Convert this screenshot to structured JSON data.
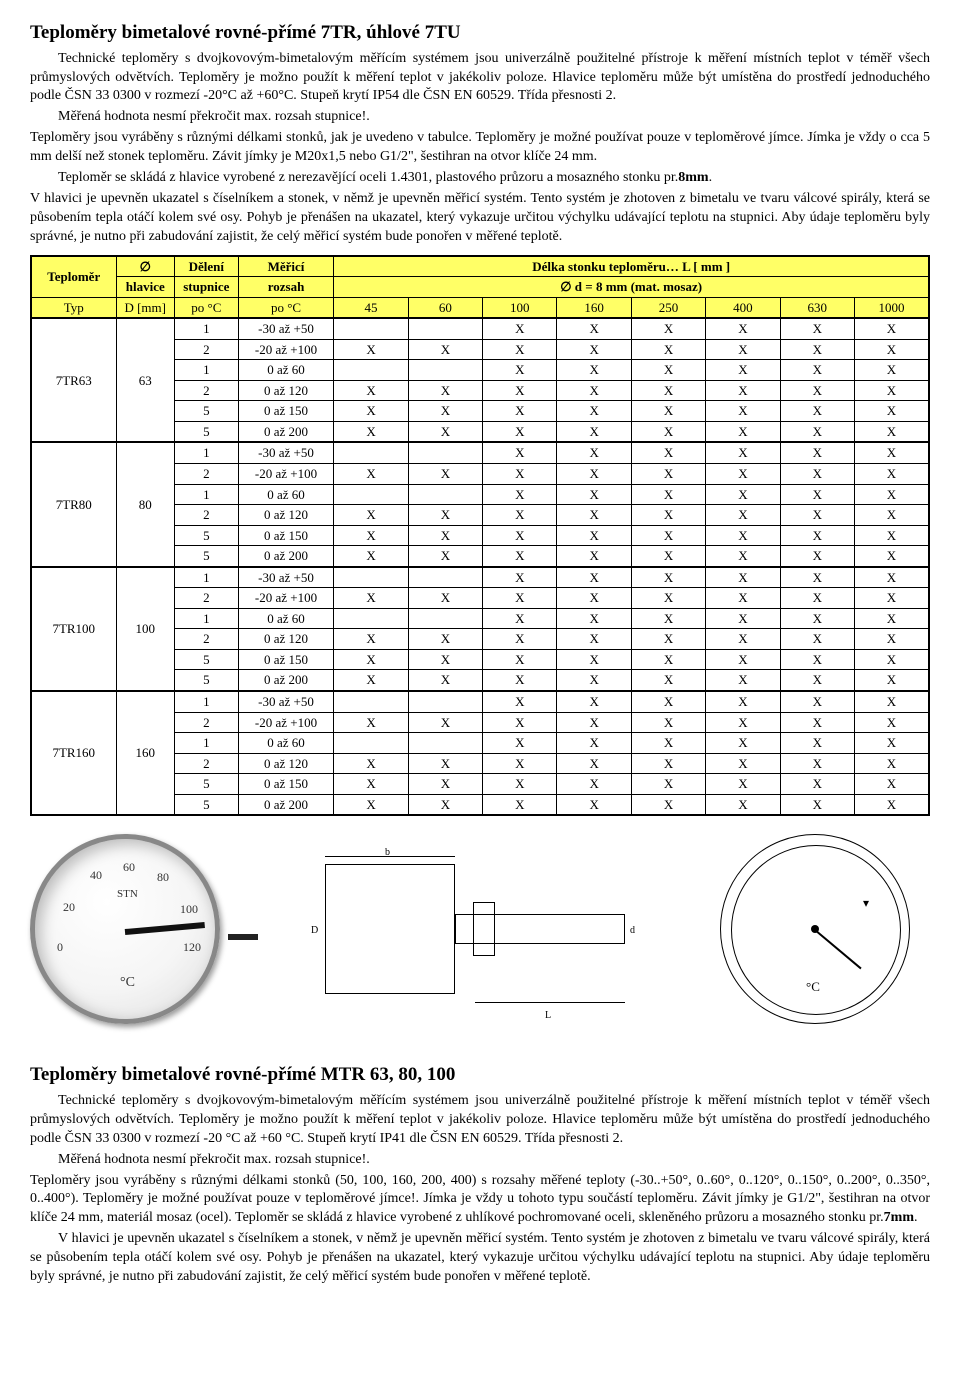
{
  "section1": {
    "title": "Teploměry bimetalové rovné-přímé 7TR, úhlové 7TU",
    "p1": "Technické teploměry s dvojkovovým-bimetalovým měřícím systémem jsou univerzálně použitelné přístroje k měření místních teplot v téměř všech průmyslových odvětvích. Teploměry je možno použít k měření teplot v jakékoliv poloze. Hlavice teploměru může být umístěna do prostředí jednoduchého podle ČSN 33 0300 v rozmezí -20°C až +60°C. Stupeň krytí IP54 dle ČSN EN 60529. Třída přesnosti 2.",
    "p2": "Měřená hodnota nesmí překročit max. rozsah stupnice!.",
    "p3": "Teploměry jsou vyráběny s různými délkami stonků, jak je uvedeno v tabulce. Teploměry je možné používat pouze v teploměrové jímce. Jímka je vždy o cca 5 mm delší než stonek teploměru. Závit jímky je M20x1,5 nebo G1/2\", šestihran na otvor klíče 24 mm.",
    "p4": "Teploměr se skládá z hlavice vyrobené z nerezavějící oceli 1.4301, plastového průzoru a mosazného stonku pr.",
    "p4b": "8mm",
    "p4c": ".",
    "p5": "V hlavici je upevněn ukazatel s číselníkem a stonek, v němž je upevněn měřicí systém. Tento systém je zhotoven z bimetalu ve tvaru válcové spirály, která se působením tepla otáčí kolem své osy. Pohyb je přenášen na ukazatel, který vykazuje určitou výchylku udávající teplotu na stupnici. Aby údaje teploměru byly správné, je nutno při zabudování zajistit, že celý měřicí systém bude ponořen v měřené teplotě."
  },
  "table": {
    "h_teplomer": "Teploměr",
    "h_dia": "∅",
    "h_hlavice": "hlavice",
    "h_deleni": "Dělení",
    "h_stupnice": "stupnice",
    "h_merici": "Měřicí",
    "h_rozsah": "rozsah",
    "h_delka": "Délka stonku teploměru… L [ mm ]",
    "h_d8": "∅ d = 8 mm (mat. mosaz)",
    "sub_typ": "Typ",
    "sub_d": "D [mm]",
    "sub_po1": "po °C",
    "sub_po2": "po °C",
    "lengths": [
      "45",
      "60",
      "100",
      "160",
      "250",
      "400",
      "630",
      "1000"
    ],
    "groups": [
      {
        "type": "7TR63",
        "d": "63"
      },
      {
        "type": "7TR80",
        "d": "80"
      },
      {
        "type": "7TR100",
        "d": "100"
      },
      {
        "type": "7TR160",
        "d": "160"
      }
    ],
    "rows": [
      {
        "div": "1",
        "range": "-30 až +50",
        "marks": [
          "",
          "",
          "X",
          "X",
          "X",
          "X",
          "X",
          "X"
        ]
      },
      {
        "div": "2",
        "range": "-20 až +100",
        "marks": [
          "X",
          "X",
          "X",
          "X",
          "X",
          "X",
          "X",
          "X"
        ]
      },
      {
        "div": "1",
        "range": "0 až 60",
        "marks": [
          "",
          "",
          "X",
          "X",
          "X",
          "X",
          "X",
          "X"
        ]
      },
      {
        "div": "2",
        "range": "0 až 120",
        "marks": [
          "X",
          "X",
          "X",
          "X",
          "X",
          "X",
          "X",
          "X"
        ]
      },
      {
        "div": "5",
        "range": "0 až 150",
        "marks": [
          "X",
          "X",
          "X",
          "X",
          "X",
          "X",
          "X",
          "X"
        ]
      },
      {
        "div": "5",
        "range": "0 až 200",
        "marks": [
          "X",
          "X",
          "X",
          "X",
          "X",
          "X",
          "X",
          "X"
        ]
      }
    ]
  },
  "gauge": {
    "ticks": [
      "0",
      "20",
      "40",
      "60",
      "80",
      "100",
      "120"
    ],
    "unit": "°C",
    "brand": "STN"
  },
  "diagram": {
    "b": "b",
    "D": "D",
    "d": "d",
    "L": "L"
  },
  "section2": {
    "title": "Teploměry bimetalové rovné-přímé MTR    63, 80, 100",
    "p1": "Technické teploměry s dvojkovovým-bimetalovým měřícím systémem jsou univerzálně použitelné přístroje k měření místních teplot v téměř všech průmyslových odvětvích. Teploměry je možno použít k měření teplot v jakékoliv poloze. Hlavice teploměru může být umístěna do prostředí jednoduchého podle ČSN 33 0300 v rozmezí -20 °C až +60 °C. Stupeň krytí IP41 dle ČSN EN 60529. Třída přesnosti 2.",
    "p2": "Měřená hodnota nesmí překročit max. rozsah stupnice!.",
    "p3": "Teploměry jsou vyráběny s různými délkami stonků (50, 100, 160, 200, 400) s rozsahy měřené teploty (-30..+50°, 0..60°, 0..120°, 0..150°, 0..200°, 0..350°, 0..400°). Teploměry je možné používat pouze v teploměrové jímce!. Jímka je vždy u tohoto typu součástí teploměru. Závit jímky je G1/2\", šestihran na otvor klíče 24 mm, materiál mosaz (ocel). Teploměr se skládá z hlavice vyrobené z uhlíkové pochromované oceli, skleněného průzoru a mosazného stonku pr.",
    "p3b": "7mm",
    "p3c": ".",
    "p4": "V hlavici je upevněn ukazatel s číselníkem a stonek, v němž je upevněn měřicí systém. Tento systém je zhotoven z bimetalu ve tvaru válcové spirály, která se působením tepla otáčí kolem své osy. Pohyb je přenášen na ukazatel, který vykazuje určitou výchylku udávající teplotu na stupnici. Aby údaje teploměru byly správné, je nutno při zabudování zajistit, že celý měřicí systém bude ponořen v měřené teplotě."
  },
  "colors": {
    "highlight": "#ffff66",
    "border": "#000000",
    "bg": "#ffffff"
  }
}
